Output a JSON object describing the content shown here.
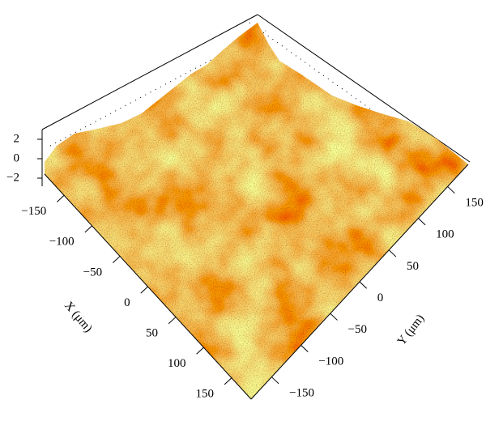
{
  "chart_data": {
    "type": "surface",
    "xlabel": "X (μm)",
    "ylabel": "Y (μm)",
    "xlim": [
      -185,
      185
    ],
    "ylim": [
      -185,
      185
    ],
    "zlim": [
      -2.5,
      2.5
    ],
    "xticks": [
      {
        "value": -150,
        "label": "−150"
      },
      {
        "value": -100,
        "label": "−100"
      },
      {
        "value": -50,
        "label": "−50"
      },
      0,
      50,
      100,
      150
    ],
    "yticks": [
      {
        "value": -150,
        "label": "−150"
      },
      {
        "value": -100,
        "label": "−100"
      },
      {
        "value": -50,
        "label": "−50"
      },
      0,
      50,
      100,
      150
    ],
    "zticks": [
      {
        "value": -2,
        "label": "−2"
      },
      0,
      2
    ]
  }
}
